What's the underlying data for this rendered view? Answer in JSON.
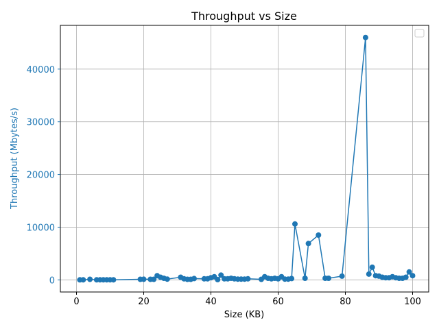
{
  "chart_data": {
    "type": "line",
    "title": "Throughput vs Size",
    "xlabel": "Size (KB)",
    "ylabel": "Throughput (Mbytes/s)",
    "xlim": [
      -4.8,
      104.8
    ],
    "ylim": [
      -2300,
      48300
    ],
    "xticks": [
      0,
      20,
      40,
      60,
      80,
      100
    ],
    "yticks": [
      0,
      10000,
      20000,
      30000,
      40000
    ],
    "grid": true,
    "legend": "top-right",
    "series": [
      {
        "color": "#1f77b4",
        "marker": "circle",
        "x": [
          1,
          2,
          4,
          6,
          7,
          8,
          9,
          10,
          11,
          19,
          20,
          22,
          23,
          24,
          25,
          26,
          27,
          31,
          32,
          33,
          34,
          35,
          38,
          39,
          40,
          41,
          42,
          43,
          44,
          45,
          46,
          47,
          48,
          49,
          50,
          51,
          55,
          56,
          57,
          58,
          59,
          60,
          61,
          62,
          63,
          64,
          65,
          68,
          69,
          72,
          74,
          75,
          79,
          86,
          87,
          88,
          89,
          90,
          91,
          92,
          93,
          94,
          95,
          96,
          97,
          98,
          99,
          100
        ],
        "y": [
          0,
          20,
          100,
          20,
          20,
          20,
          20,
          20,
          20,
          100,
          120,
          100,
          100,
          800,
          500,
          300,
          150,
          500,
          200,
          100,
          100,
          250,
          200,
          200,
          400,
          600,
          50,
          900,
          200,
          200,
          300,
          200,
          150,
          150,
          150,
          200,
          100,
          600,
          300,
          200,
          300,
          200,
          600,
          150,
          150,
          250,
          10600,
          300,
          6900,
          8500,
          300,
          300,
          700,
          46000,
          1100,
          2400,
          800,
          700,
          500,
          400,
          400,
          600,
          400,
          300,
          300,
          500,
          1500,
          800
        ]
      }
    ]
  }
}
